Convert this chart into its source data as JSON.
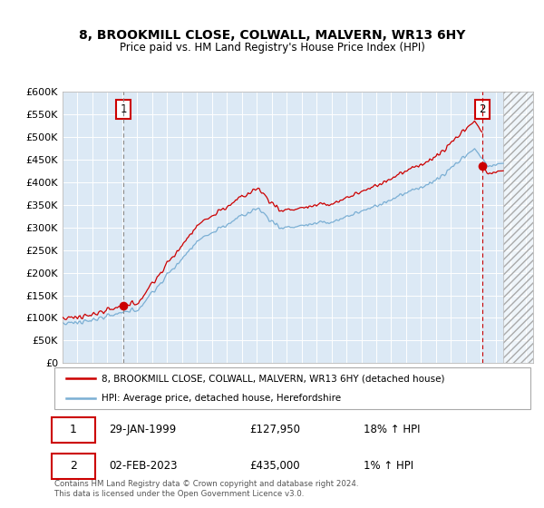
{
  "title1": "8, BROOKMILL CLOSE, COLWALL, MALVERN, WR13 6HY",
  "title2": "Price paid vs. HM Land Registry's House Price Index (HPI)",
  "legend_property": "8, BROOKMILL CLOSE, COLWALL, MALVERN, WR13 6HY (detached house)",
  "legend_hpi": "HPI: Average price, detached house, Herefordshire",
  "point1_date": "29-JAN-1999",
  "point1_price": "£127,950",
  "point1_hpi": "18% ↑ HPI",
  "point2_date": "02-FEB-2023",
  "point2_price": "£435,000",
  "point2_hpi": "1% ↑ HPI",
  "footnote": "Contains HM Land Registry data © Crown copyright and database right 2024.\nThis data is licensed under the Open Government Licence v3.0.",
  "property_color": "#cc0000",
  "hpi_color": "#7bafd4",
  "plot_bg": "#dce9f5",
  "ylim": [
    0,
    600000
  ],
  "yticks": [
    0,
    50000,
    100000,
    150000,
    200000,
    250000,
    300000,
    350000,
    400000,
    450000,
    500000,
    550000,
    600000
  ],
  "point1_x": 1999.08,
  "point1_y": 127950,
  "point2_x": 2023.09,
  "point2_y": 435000,
  "xlim_start": 1995,
  "xlim_end": 2026.5,
  "hatch_start": 2024.5
}
